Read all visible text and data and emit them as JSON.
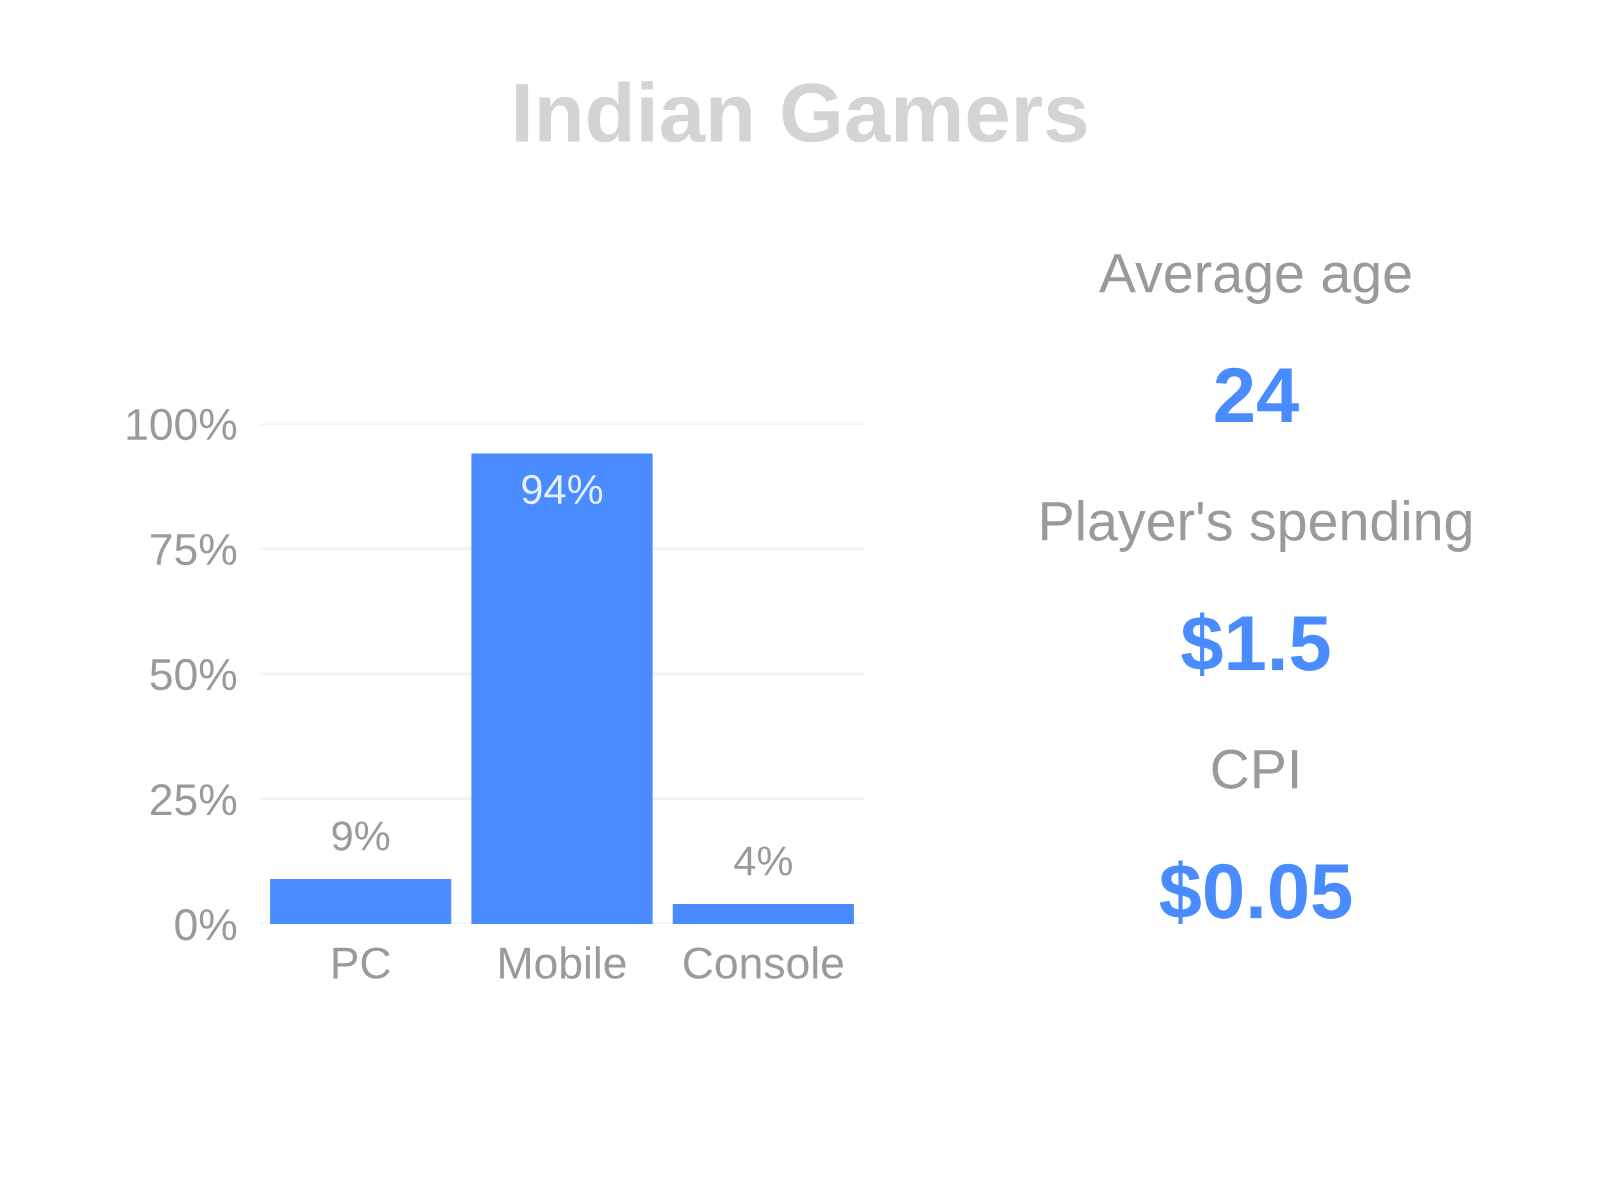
{
  "chart_data": [
    {
      "type": "bar",
      "title": "Indian Gamers",
      "categories": [
        "PC",
        "Mobile",
        "Console"
      ],
      "values": [
        9,
        94,
        4
      ],
      "color": "#4a8cff",
      "value_labels": [
        "9%",
        "94%",
        "4%"
      ],
      "ylim": [
        0,
        100
      ],
      "yticks": [
        {
          "value": 0,
          "label": "0%"
        },
        {
          "value": 25,
          "label": "25%"
        },
        {
          "value": 50,
          "label": "50%"
        },
        {
          "value": 75,
          "label": "75%"
        },
        {
          "value": 100,
          "label": "100%"
        }
      ],
      "grid": "y"
    },
    {
      "type": "other",
      "annotations": [
        "Average age",
        "24",
        "Player's spending",
        "$1.5",
        "CPI",
        "$0.05"
      ]
    }
  ]
}
